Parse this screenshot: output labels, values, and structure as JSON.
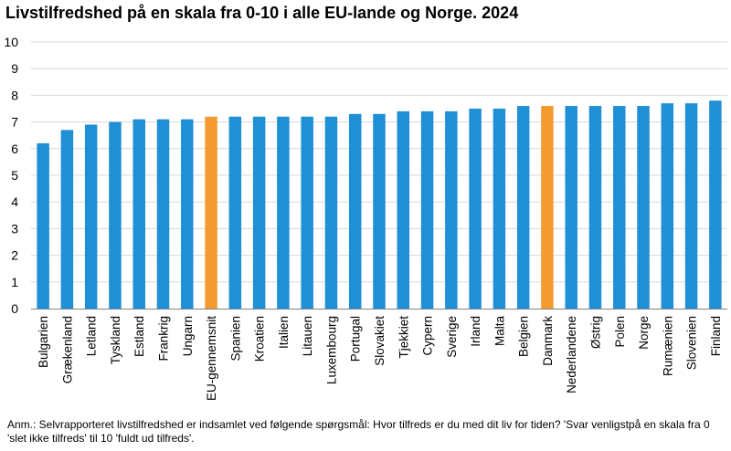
{
  "chart_data": {
    "type": "bar",
    "title": "Livstilfredshed på en skala fra 0-10 i alle EU-lande og Norge. 2024",
    "xlabel": "",
    "ylabel": "",
    "ylim": [
      0,
      10
    ],
    "yticks": [
      0,
      1,
      2,
      3,
      4,
      5,
      6,
      7,
      8,
      9,
      10
    ],
    "grid": true,
    "categories": [
      "Bulgarien",
      "Grækenland",
      "Letland",
      "Tyskland",
      "Estland",
      "Frankrig",
      "Ungarn",
      "EU-gennemsnit",
      "Spanien",
      "Kroatien",
      "Italien",
      "Litauen",
      "Luxembourg",
      "Portugal",
      "Slovakiet",
      "Tjekkiet",
      "Cypern",
      "Sverige",
      "Irland",
      "Malta",
      "Belgien",
      "Danmark",
      "Nederlandene",
      "Østrig",
      "Polen",
      "Norge",
      "Rumænien",
      "Slovenien",
      "Finland"
    ],
    "values": [
      6.2,
      6.7,
      6.9,
      7.0,
      7.1,
      7.1,
      7.1,
      7.2,
      7.2,
      7.2,
      7.2,
      7.2,
      7.2,
      7.3,
      7.3,
      7.4,
      7.4,
      7.4,
      7.5,
      7.5,
      7.6,
      7.6,
      7.6,
      7.6,
      7.6,
      7.6,
      7.7,
      7.7,
      7.8
    ],
    "highlighted": [
      "EU-gennemsnit",
      "Danmark"
    ],
    "colors": {
      "default": "#1f8fd6",
      "highlight": "#f39b30",
      "grid": "#d9d9d9",
      "axis": "#808080"
    }
  },
  "note": "Anm.: Selvrapporteret livstilfredshed er indsamlet ved følgende spørgsmål: Hvor tilfreds er du med dit liv for tiden? 'Svar venligstpå en skala fra 0 'slet ikke tilfreds' til 10 'fuldt ud tilfreds'."
}
